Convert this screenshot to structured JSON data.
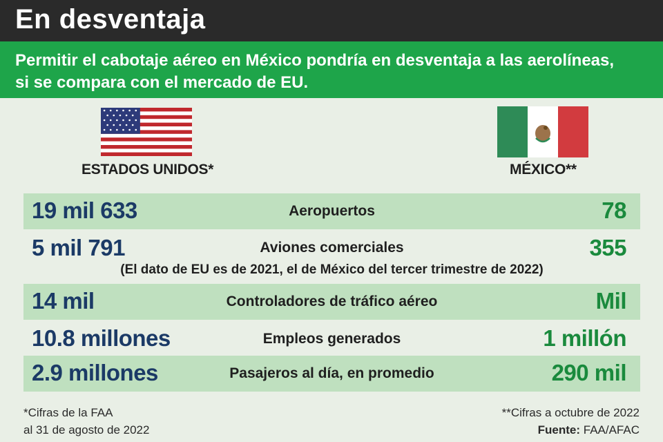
{
  "header": {
    "title": "En desventaja"
  },
  "subhead": {
    "line1": "Permitir el cabotaje aéreo en México pondría en desventaja a las aerolíneas,",
    "line2": "si se compara con el mercado de EU."
  },
  "countries": {
    "us": {
      "label": "ESTADOS UNIDOS*",
      "flag": "us-flag-icon"
    },
    "mx": {
      "label": "MÉXICO**",
      "flag": "mexico-flag-icon"
    }
  },
  "rows": [
    {
      "us": "19 mil 633",
      "label": "Aeropuertos",
      "mx": "78"
    },
    {
      "us": "5 mil 791",
      "label": "Aviones comerciales",
      "mx": "355",
      "note": "(El dato de EU es de 2021, el de México del tercer trimestre de 2022)"
    },
    {
      "us": "14 mil",
      "label": "Controladores de tráfico aéreo",
      "mx": "Mil"
    },
    {
      "us": "10.8 millones",
      "label": "Empleos generados",
      "mx": "1 millón"
    },
    {
      "us": "2.9 millones",
      "label": "Pasajeros al día, en promedio",
      "mx": "290 mil"
    }
  ],
  "footnotes": {
    "left_line1": "*Cifras de la FAA",
    "left_line2": "al 31 de agosto de 2022",
    "right_line1": "**Cifras a octubre de 2022",
    "source_label": "Fuente:",
    "source_value": "FAA/AFAC"
  },
  "colors": {
    "header_bg": "#2a2a2a",
    "subhead_bg": "#1ea54a",
    "row_shade": "#bfe0bf",
    "us_value": "#1b3a66",
    "mx_value": "#1a8a3d"
  }
}
